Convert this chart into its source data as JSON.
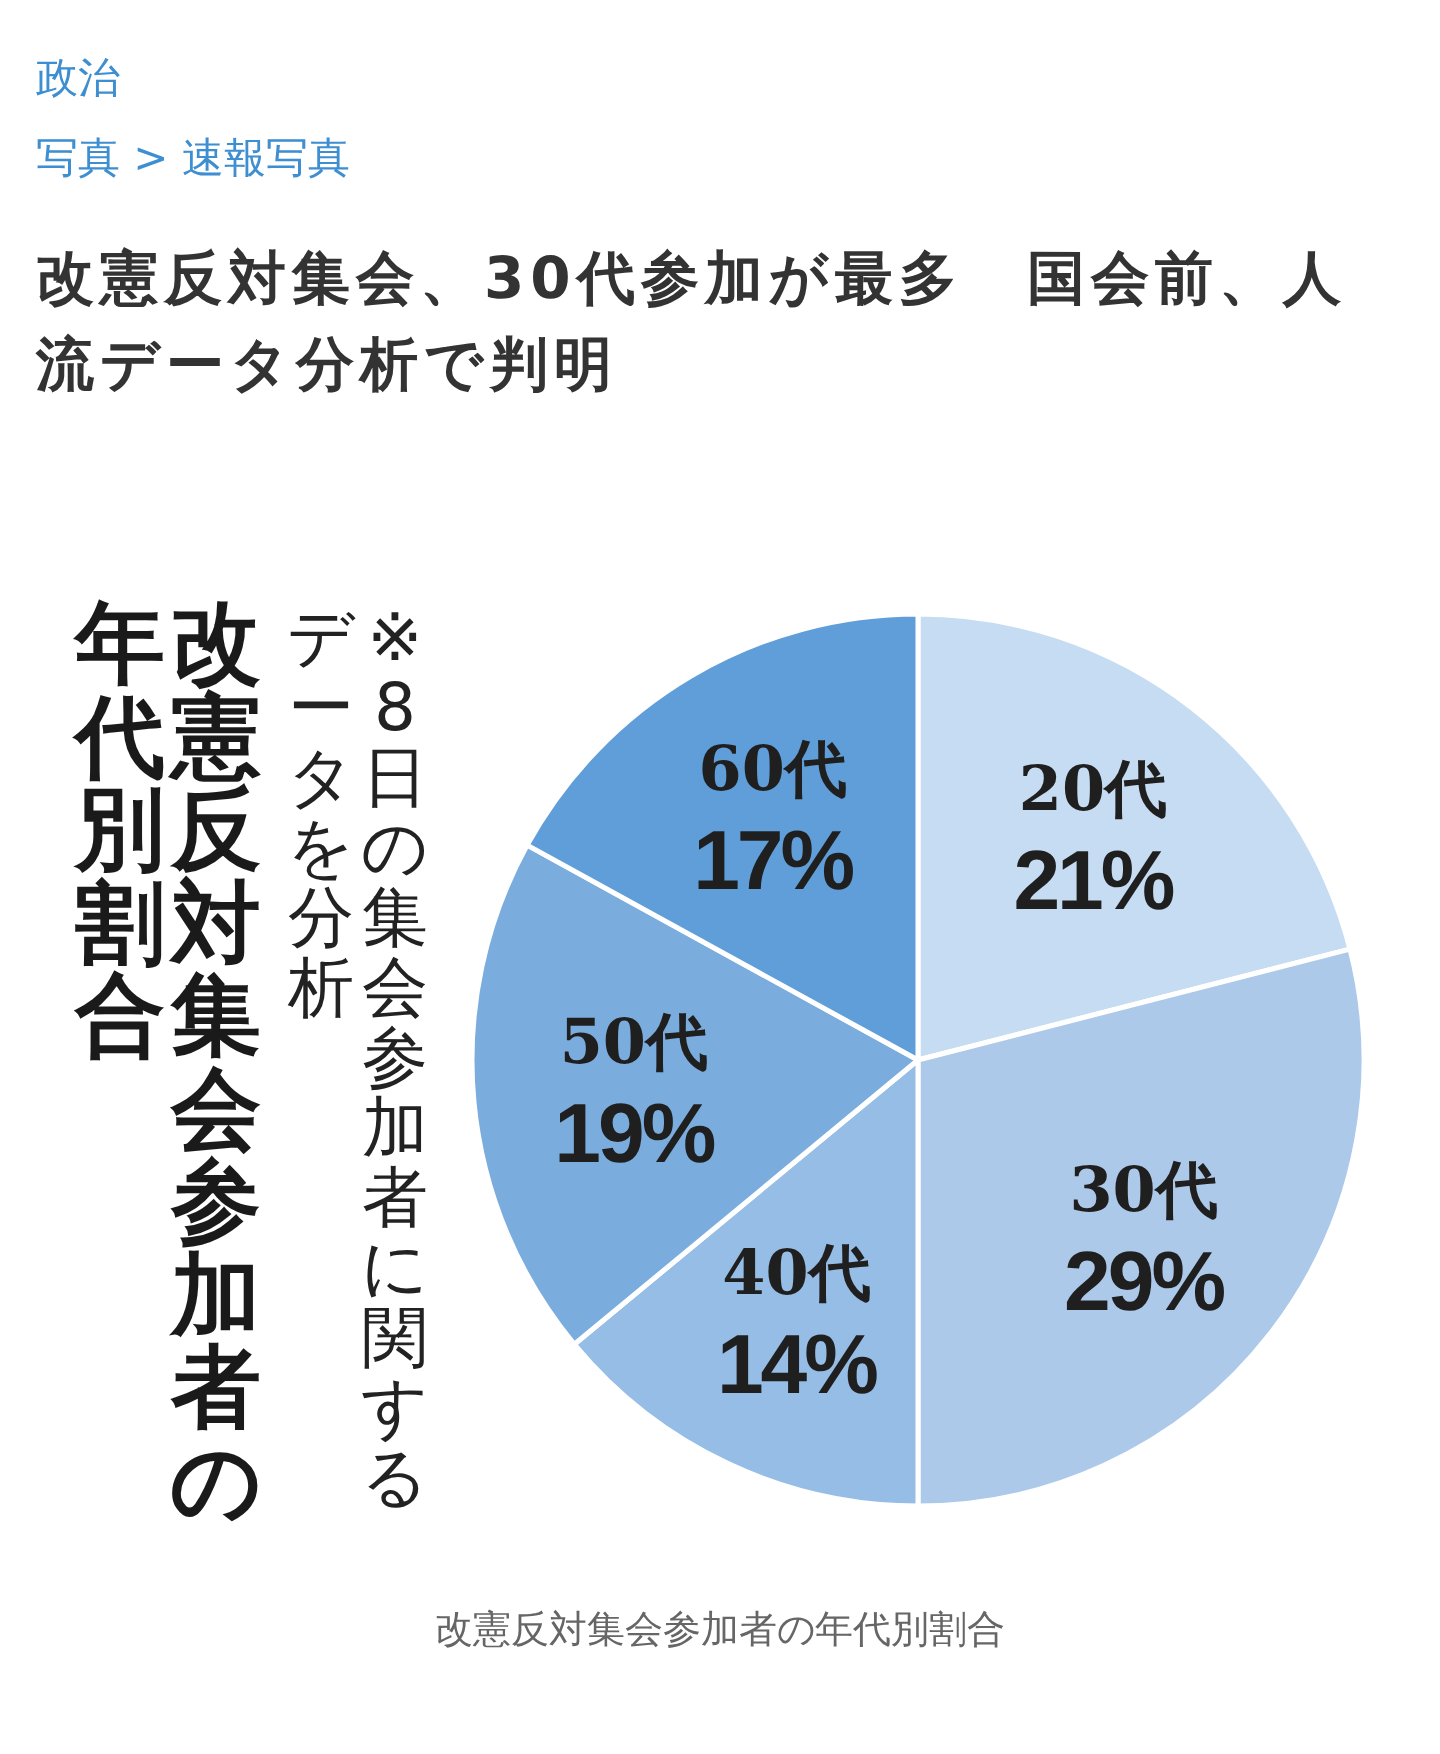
{
  "chart_data": {
    "type": "pie",
    "title": "改憲反対集会参加者の年代別割合",
    "subtitle": "※8日の集会参加者に関するデータを分析",
    "categories": [
      "20代",
      "30代",
      "40代",
      "50代",
      "60代"
    ],
    "values": [
      21,
      29,
      14,
      19,
      17
    ],
    "value_labels": [
      "21%",
      "29%",
      "14%",
      "19%",
      "17%"
    ],
    "colors": [
      "#c6dcf2",
      "#acc9ea",
      "#96bde5",
      "#7aaddd",
      "#5f9ed8"
    ],
    "annotations": [
      "政治",
      "写真 > 速報写真",
      "改憲反対集会、30代参加が最多　国会前、人流データ分析で判明",
      "改憲反対集会参加者の年代別割合"
    ]
  }
}
